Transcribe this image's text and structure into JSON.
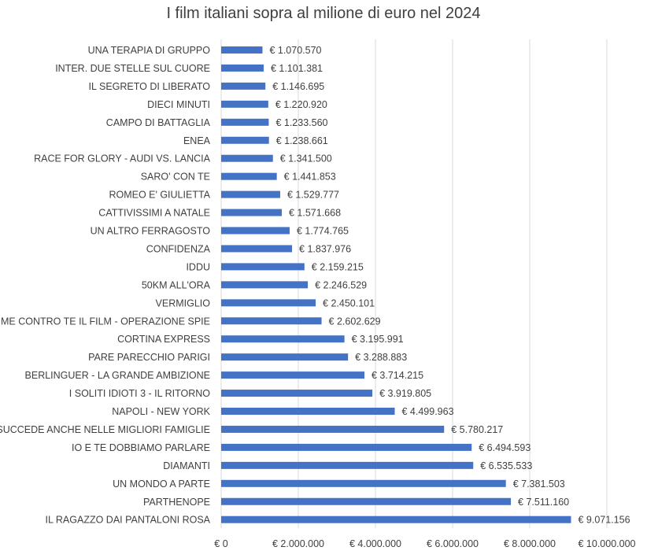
{
  "chart_data": {
    "type": "bar",
    "orientation": "horizontal",
    "title": "I film italiani sopra al milione di euro nel 2024",
    "xlabel": "",
    "ylabel": "",
    "xlim": [
      0,
      10000000
    ],
    "grid": true,
    "bar_color": "#4472C4",
    "categories": [
      "UNA TERAPIA DI GRUPPO",
      "INTER. DUE STELLE SUL CUORE",
      "IL SEGRETO DI LIBERATO",
      "DIECI MINUTI",
      "CAMPO DI BATTAGLIA",
      "ENEA",
      "RACE FOR GLORY - AUDI VS. LANCIA",
      "SARO' CON TE",
      "ROMEO E' GIULIETTA",
      "CATTIVISSIMI A NATALE",
      "UN ALTRO FERRAGOSTO",
      "CONFIDENZA",
      "IDDU",
      "50KM ALL'ORA",
      "VERMIGLIO",
      "ME CONTRO TE IL FILM - OPERAZIONE SPIE",
      "CORTINA EXPRESS",
      "PARE PARECCHIO PARIGI",
      "BERLINGUER - LA GRANDE AMBIZIONE",
      "I SOLITI IDIOTI 3 - IL RITORNO",
      "NAPOLI - NEW YORK",
      "SUCCEDE ANCHE NELLE MIGLIORI FAMIGLIE",
      "IO E TE DOBBIAMO PARLARE",
      "DIAMANTI",
      "UN MONDO A PARTE",
      "PARTHENOPE",
      "IL RAGAZZO DAI PANTALONI ROSA"
    ],
    "values": [
      1070570,
      1101381,
      1146695,
      1220920,
      1233560,
      1238661,
      1341500,
      1441853,
      1529777,
      1571668,
      1774765,
      1837976,
      2159215,
      2246529,
      2450101,
      2602629,
      3195991,
      3288883,
      3714215,
      3919805,
      4499963,
      5780217,
      6494593,
      6535533,
      7381503,
      7511160,
      9071156
    ],
    "value_labels": [
      "€ 1.070.570",
      "€ 1.101.381",
      "€ 1.146.695",
      "€ 1.220.920",
      "€ 1.233.560",
      "€ 1.238.661",
      "€ 1.341.500",
      "€ 1.441.853",
      "€ 1.529.777",
      "€ 1.571.668",
      "€ 1.774.765",
      "€ 1.837.976",
      "€ 2.159.215",
      "€ 2.246.529",
      "€ 2.450.101",
      "€ 2.602.629",
      "€ 3.195.991",
      "€ 3.288.883",
      "€ 3.714.215",
      "€ 3.919.805",
      "€ 4.499.963",
      "€ 5.780.217",
      "€ 6.494.593",
      "€ 6.535.533",
      "€ 7.381.503",
      "€ 7.511.160",
      "€ 9.071.156"
    ],
    "x_ticks": [
      0,
      2000000,
      4000000,
      6000000,
      8000000,
      10000000
    ],
    "x_tick_labels": [
      "€ 0",
      "€ 2.000.000",
      "€ 4.000.000",
      "€ 6.000.000",
      "€ 8.000.000",
      "€ 10.000.000"
    ]
  }
}
